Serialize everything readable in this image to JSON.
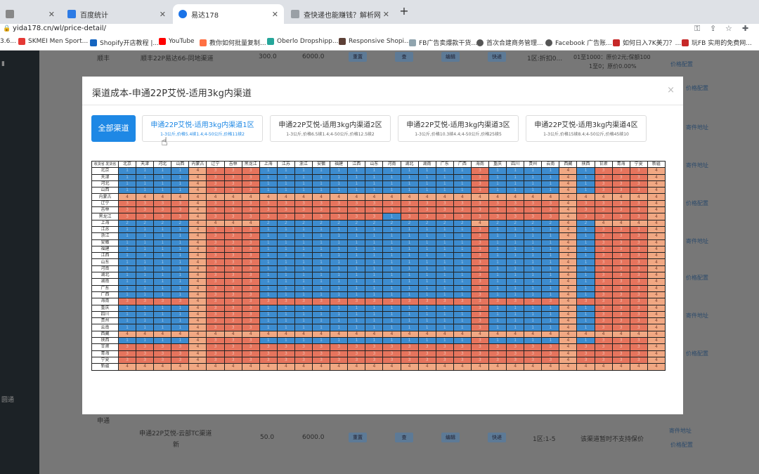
{
  "browser": {
    "tabs": [
      {
        "label": "",
        "color": "#888888"
      },
      {
        "label": "百度统计",
        "color": "#2d7be5"
      },
      {
        "label": "易达178",
        "color": "#1a73e8",
        "active": true
      },
      {
        "label": "查快递也能赚钱？解析网络快递",
        "color": "#9aa0a6"
      }
    ],
    "url": "yida178.cn/wl/price-detail/",
    "bookmarks": [
      {
        "label": "3.6...",
        "color": "#777777"
      },
      {
        "label": "SKMEI Men Sport...",
        "color": "#e53935"
      },
      {
        "label": "Shopify开店教程 |...",
        "color": "#1565c0"
      },
      {
        "label": "YouTube",
        "color": "#ff0000"
      },
      {
        "label": "教你如何批量复制...",
        "color": "#ff7043"
      },
      {
        "label": "Oberlo Dropshipp...",
        "color": "#26a69a"
      },
      {
        "label": "Responsive Shopi...",
        "color": "#5d4037"
      },
      {
        "label": "FB广告卖爆款干货...",
        "color": "#90a4ae"
      },
      {
        "label": "首次合建商务管理...",
        "color": "#555555"
      },
      {
        "label": "Facebook 广告账...",
        "color": "#555555"
      },
      {
        "label": "如何日入7K美刀？...",
        "color": "#c62828"
      },
      {
        "label": "玩FB 实用的免费网...",
        "color": "#c62828"
      }
    ]
  },
  "sidebar": {
    "label": "圆通"
  },
  "background": {
    "row1": {
      "name": "顺丰",
      "channel": "顺丰22P易达66-同地渠道",
      "v1": "300.0",
      "v2": "6000.0",
      "zone": "1区:折扣0...",
      "price": "01至1000：原价2元;保额100",
      "price2": "1至0；原价0.00%",
      "link": "价格配置"
    },
    "row2": {
      "name": "申通",
      "channel": "申通22P艾悦-云部TC渠道",
      "channel2": "新",
      "v1": "50.0",
      "v2": "6000.0",
      "zone": "1区:1-5",
      "price": "该渠道暂时不支持保价",
      "link": "价格配置",
      "link2": "寄件地址"
    },
    "side_links": [
      "价格配置",
      "寄件地址",
      "寄件地址",
      "价格配置",
      "寄件地址",
      "价格配置",
      "寄件地址",
      "价格配置",
      "寄件地址",
      "价格配置"
    ],
    "buttons": [
      "重置",
      "查",
      "编辑",
      "快递"
    ]
  },
  "modal": {
    "title": "渠道成本-申通22P艾悦-适用3kg内渠道",
    "close": "×",
    "all_button": "全部渠道",
    "channels": [
      {
        "name": "申通22P艾悦-适用3kg内渠道1区",
        "desc": "1-3公斤,价格5.4续1.4;4-50公斤,价格11续2",
        "selected": true
      },
      {
        "name": "申通22P艾悦-适用3kg内渠道2区",
        "desc": "1-3公斤,价格6.5续1.4;4-50公斤,价格12.5续2",
        "selected": false
      },
      {
        "name": "申通22P艾悦-适用3kg内渠道3区",
        "desc": "1-3公斤,价格10.3续4.4;4-50公斤,价格25续5",
        "selected": false
      },
      {
        "name": "申通22P艾悦-适用3kg内渠道4区",
        "desc": "1-3公斤,价格15续8.4;4-50公斤,价格45续10",
        "selected": false
      }
    ]
  },
  "grid": {
    "corner_top": "收货省",
    "corner_bottom": "发货省",
    "provinces": [
      "北京",
      "天津",
      "河北",
      "山西",
      "内蒙古",
      "辽宁",
      "吉林",
      "黑龙江",
      "上海",
      "江苏",
      "浙江",
      "安徽",
      "福建",
      "江西",
      "山东",
      "河南",
      "湖北",
      "湖南",
      "广东",
      "广西",
      "海南",
      "重庆",
      "四川",
      "贵州",
      "云南",
      "西藏",
      "陕西",
      "甘肃",
      "青海",
      "宁夏",
      "新疆"
    ],
    "zone_colors": {
      "1": "#3d8ccf",
      "2": "#3d8ccf",
      "3": "#e6745d",
      "4": "#f1a883"
    },
    "rows": [
      [
        1,
        1,
        1,
        1,
        4,
        3,
        3,
        3,
        1,
        1,
        1,
        1,
        1,
        1,
        1,
        1,
        1,
        1,
        1,
        1,
        3,
        1,
        1,
        1,
        1,
        4,
        1,
        3,
        3,
        3,
        4
      ],
      [
        1,
        1,
        1,
        1,
        4,
        3,
        3,
        3,
        1,
        1,
        1,
        1,
        1,
        1,
        1,
        1,
        1,
        1,
        1,
        1,
        3,
        1,
        1,
        1,
        1,
        4,
        1,
        3,
        3,
        3,
        4
      ],
      [
        1,
        1,
        1,
        1,
        4,
        3,
        3,
        3,
        1,
        1,
        1,
        1,
        1,
        1,
        1,
        1,
        1,
        1,
        1,
        1,
        3,
        1,
        1,
        1,
        1,
        4,
        1,
        3,
        3,
        3,
        4
      ],
      [
        1,
        1,
        1,
        1,
        4,
        3,
        3,
        3,
        1,
        1,
        1,
        1,
        1,
        1,
        1,
        1,
        1,
        1,
        1,
        1,
        3,
        1,
        1,
        1,
        1,
        4,
        1,
        3,
        3,
        3,
        4
      ],
      [
        4,
        4,
        4,
        4,
        4,
        4,
        4,
        4,
        4,
        4,
        4,
        4,
        4,
        4,
        4,
        4,
        4,
        4,
        4,
        4,
        4,
        4,
        4,
        4,
        4,
        4,
        4,
        4,
        4,
        4,
        4
      ],
      [
        3,
        3,
        3,
        3,
        4,
        3,
        3,
        3,
        3,
        3,
        3,
        3,
        3,
        3,
        3,
        3,
        3,
        3,
        3,
        3,
        3,
        3,
        3,
        3,
        3,
        4,
        3,
        3,
        3,
        3,
        4
      ],
      [
        3,
        3,
        3,
        3,
        4,
        3,
        3,
        3,
        3,
        3,
        3,
        3,
        3,
        3,
        3,
        3,
        3,
        3,
        3,
        3,
        3,
        3,
        3,
        3,
        3,
        4,
        3,
        3,
        3,
        3,
        4
      ],
      [
        3,
        3,
        3,
        3,
        4,
        3,
        3,
        3,
        3,
        3,
        3,
        3,
        3,
        3,
        3,
        1,
        3,
        3,
        3,
        3,
        3,
        3,
        3,
        3,
        3,
        4,
        3,
        3,
        3,
        3,
        4
      ],
      [
        2,
        2,
        2,
        2,
        4,
        4,
        4,
        4,
        2,
        2,
        2,
        2,
        2,
        2,
        2,
        2,
        2,
        2,
        2,
        2,
        4,
        2,
        2,
        2,
        2,
        4,
        2,
        4,
        4,
        4,
        4
      ],
      [
        1,
        1,
        1,
        1,
        4,
        3,
        3,
        3,
        1,
        1,
        1,
        1,
        1,
        1,
        1,
        1,
        1,
        1,
        1,
        1,
        3,
        1,
        1,
        1,
        1,
        4,
        1,
        3,
        3,
        3,
        4
      ],
      [
        1,
        1,
        1,
        1,
        4,
        3,
        3,
        3,
        1,
        1,
        1,
        1,
        1,
        1,
        1,
        1,
        1,
        1,
        1,
        1,
        3,
        1,
        1,
        1,
        1,
        4,
        1,
        3,
        3,
        3,
        4
      ],
      [
        1,
        1,
        1,
        1,
        4,
        3,
        3,
        3,
        1,
        1,
        1,
        1,
        1,
        1,
        1,
        1,
        1,
        1,
        1,
        1,
        3,
        1,
        1,
        1,
        1,
        4,
        1,
        3,
        3,
        3,
        4
      ],
      [
        1,
        1,
        1,
        1,
        4,
        3,
        3,
        3,
        1,
        1,
        1,
        1,
        1,
        1,
        1,
        1,
        1,
        1,
        1,
        1,
        3,
        1,
        1,
        1,
        1,
        4,
        1,
        3,
        3,
        3,
        4
      ],
      [
        1,
        1,
        1,
        1,
        4,
        3,
        3,
        3,
        1,
        1,
        1,
        1,
        1,
        1,
        1,
        1,
        1,
        1,
        1,
        1,
        3,
        1,
        1,
        1,
        1,
        4,
        1,
        3,
        3,
        3,
        4
      ],
      [
        1,
        1,
        1,
        1,
        4,
        3,
        3,
        3,
        1,
        1,
        1,
        1,
        1,
        1,
        1,
        1,
        1,
        1,
        1,
        1,
        3,
        1,
        1,
        1,
        1,
        4,
        1,
        3,
        3,
        3,
        4
      ],
      [
        1,
        1,
        1,
        1,
        4,
        3,
        3,
        3,
        1,
        1,
        1,
        1,
        1,
        1,
        1,
        1,
        1,
        1,
        1,
        1,
        3,
        1,
        1,
        1,
        1,
        4,
        1,
        3,
        3,
        3,
        4
      ],
      [
        1,
        1,
        1,
        1,
        4,
        3,
        3,
        3,
        1,
        1,
        1,
        1,
        1,
        1,
        1,
        1,
        1,
        1,
        1,
        1,
        3,
        1,
        1,
        1,
        1,
        4,
        1,
        3,
        3,
        3,
        4
      ],
      [
        1,
        1,
        1,
        1,
        4,
        3,
        3,
        3,
        1,
        1,
        1,
        1,
        1,
        1,
        1,
        1,
        1,
        1,
        1,
        1,
        3,
        1,
        1,
        1,
        1,
        4,
        1,
        3,
        3,
        3,
        4
      ],
      [
        1,
        1,
        1,
        1,
        4,
        3,
        3,
        3,
        1,
        1,
        1,
        1,
        1,
        1,
        1,
        1,
        1,
        1,
        1,
        1,
        3,
        1,
        1,
        1,
        1,
        4,
        1,
        3,
        3,
        3,
        4
      ],
      [
        1,
        1,
        1,
        1,
        4,
        3,
        3,
        3,
        1,
        1,
        1,
        1,
        1,
        1,
        1,
        1,
        1,
        1,
        1,
        1,
        3,
        1,
        1,
        1,
        1,
        4,
        1,
        3,
        3,
        3,
        4
      ],
      [
        3,
        3,
        3,
        3,
        4,
        3,
        3,
        3,
        3,
        3,
        3,
        3,
        3,
        3,
        3,
        3,
        3,
        3,
        3,
        3,
        3,
        3,
        3,
        3,
        3,
        4,
        3,
        3,
        3,
        3,
        4
      ],
      [
        1,
        1,
        1,
        1,
        4,
        3,
        3,
        3,
        1,
        1,
        1,
        1,
        1,
        1,
        1,
        1,
        1,
        1,
        1,
        1,
        3,
        1,
        1,
        1,
        1,
        4,
        1,
        3,
        3,
        3,
        4
      ],
      [
        1,
        1,
        1,
        1,
        4,
        3,
        3,
        3,
        1,
        1,
        1,
        1,
        1,
        1,
        1,
        1,
        1,
        1,
        1,
        1,
        3,
        1,
        1,
        1,
        1,
        4,
        1,
        3,
        3,
        3,
        4
      ],
      [
        1,
        1,
        1,
        1,
        4,
        3,
        3,
        3,
        1,
        1,
        1,
        1,
        1,
        1,
        1,
        1,
        1,
        1,
        1,
        1,
        3,
        1,
        1,
        1,
        1,
        4,
        1,
        3,
        3,
        3,
        4
      ],
      [
        1,
        1,
        1,
        1,
        4,
        3,
        3,
        3,
        1,
        1,
        1,
        1,
        1,
        1,
        1,
        1,
        1,
        1,
        1,
        1,
        3,
        1,
        1,
        1,
        1,
        4,
        1,
        3,
        3,
        3,
        4
      ],
      [
        4,
        4,
        4,
        4,
        4,
        4,
        4,
        4,
        4,
        4,
        4,
        4,
        4,
        4,
        4,
        4,
        4,
        4,
        4,
        4,
        4,
        4,
        4,
        4,
        4,
        4,
        4,
        4,
        4,
        4,
        4
      ],
      [
        1,
        1,
        1,
        1,
        4,
        3,
        3,
        3,
        1,
        1,
        1,
        1,
        1,
        1,
        1,
        1,
        1,
        1,
        1,
        1,
        3,
        1,
        1,
        1,
        1,
        4,
        1,
        3,
        3,
        3,
        4
      ],
      [
        3,
        3,
        3,
        3,
        4,
        3,
        3,
        3,
        3,
        3,
        3,
        3,
        3,
        3,
        3,
        3,
        3,
        3,
        3,
        3,
        3,
        3,
        3,
        3,
        3,
        4,
        3,
        3,
        3,
        3,
        4
      ],
      [
        3,
        3,
        3,
        3,
        4,
        3,
        3,
        3,
        3,
        3,
        3,
        3,
        3,
        3,
        3,
        3,
        3,
        3,
        3,
        3,
        3,
        3,
        3,
        3,
        3,
        4,
        3,
        3,
        3,
        3,
        4
      ],
      [
        3,
        3,
        3,
        3,
        4,
        3,
        3,
        3,
        3,
        3,
        3,
        3,
        3,
        3,
        3,
        3,
        3,
        3,
        3,
        3,
        3,
        3,
        3,
        3,
        3,
        4,
        3,
        3,
        3,
        3,
        4
      ],
      [
        4,
        4,
        4,
        4,
        4,
        4,
        4,
        4,
        4,
        4,
        4,
        4,
        4,
        4,
        4,
        4,
        4,
        4,
        4,
        4,
        4,
        4,
        4,
        4,
        4,
        4,
        4,
        4,
        4,
        4,
        4
      ]
    ]
  }
}
